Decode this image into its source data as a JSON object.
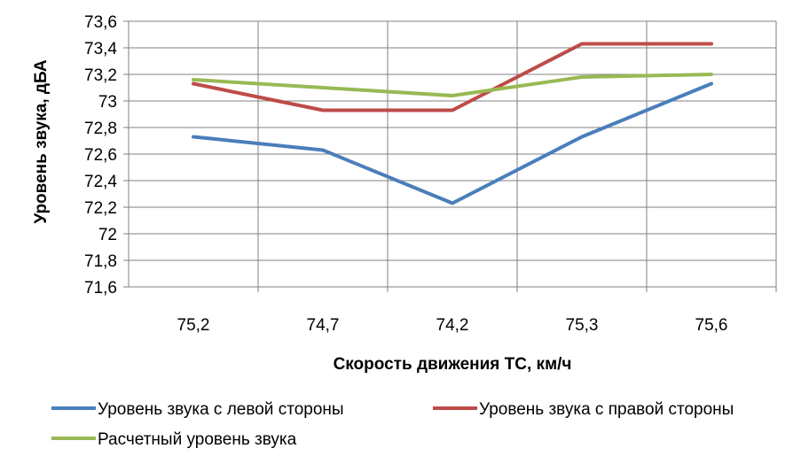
{
  "chart_data": {
    "type": "line",
    "categories": [
      "75,2",
      "74,7",
      "74,2",
      "75,3",
      "75,6"
    ],
    "xlabel": "Скорость движения ТС, км/ч",
    "ylabel": "Уровень звука, дБА",
    "ylim": [
      71.6,
      73.6
    ],
    "ystep": 0.2,
    "y_ticks": [
      "71,6",
      "71,8",
      "72",
      "72,2",
      "72,4",
      "72,6",
      "72,8",
      "73",
      "73,2",
      "73,4",
      "73,6"
    ],
    "grid": true,
    "legend_position": "bottom",
    "series": [
      {
        "name": "Уровень звука с левой стороны",
        "color": "#4a7ebb",
        "values": [
          72.73,
          72.63,
          72.23,
          72.73,
          73.13
        ]
      },
      {
        "name": "Уровень звука с правой стороны",
        "color": "#be4b48",
        "values": [
          73.13,
          72.93,
          72.93,
          73.43,
          73.43
        ]
      },
      {
        "name": "Расчетный уровень звука",
        "color": "#98b954",
        "values": [
          73.16,
          73.1,
          73.04,
          73.18,
          73.2
        ]
      }
    ]
  }
}
